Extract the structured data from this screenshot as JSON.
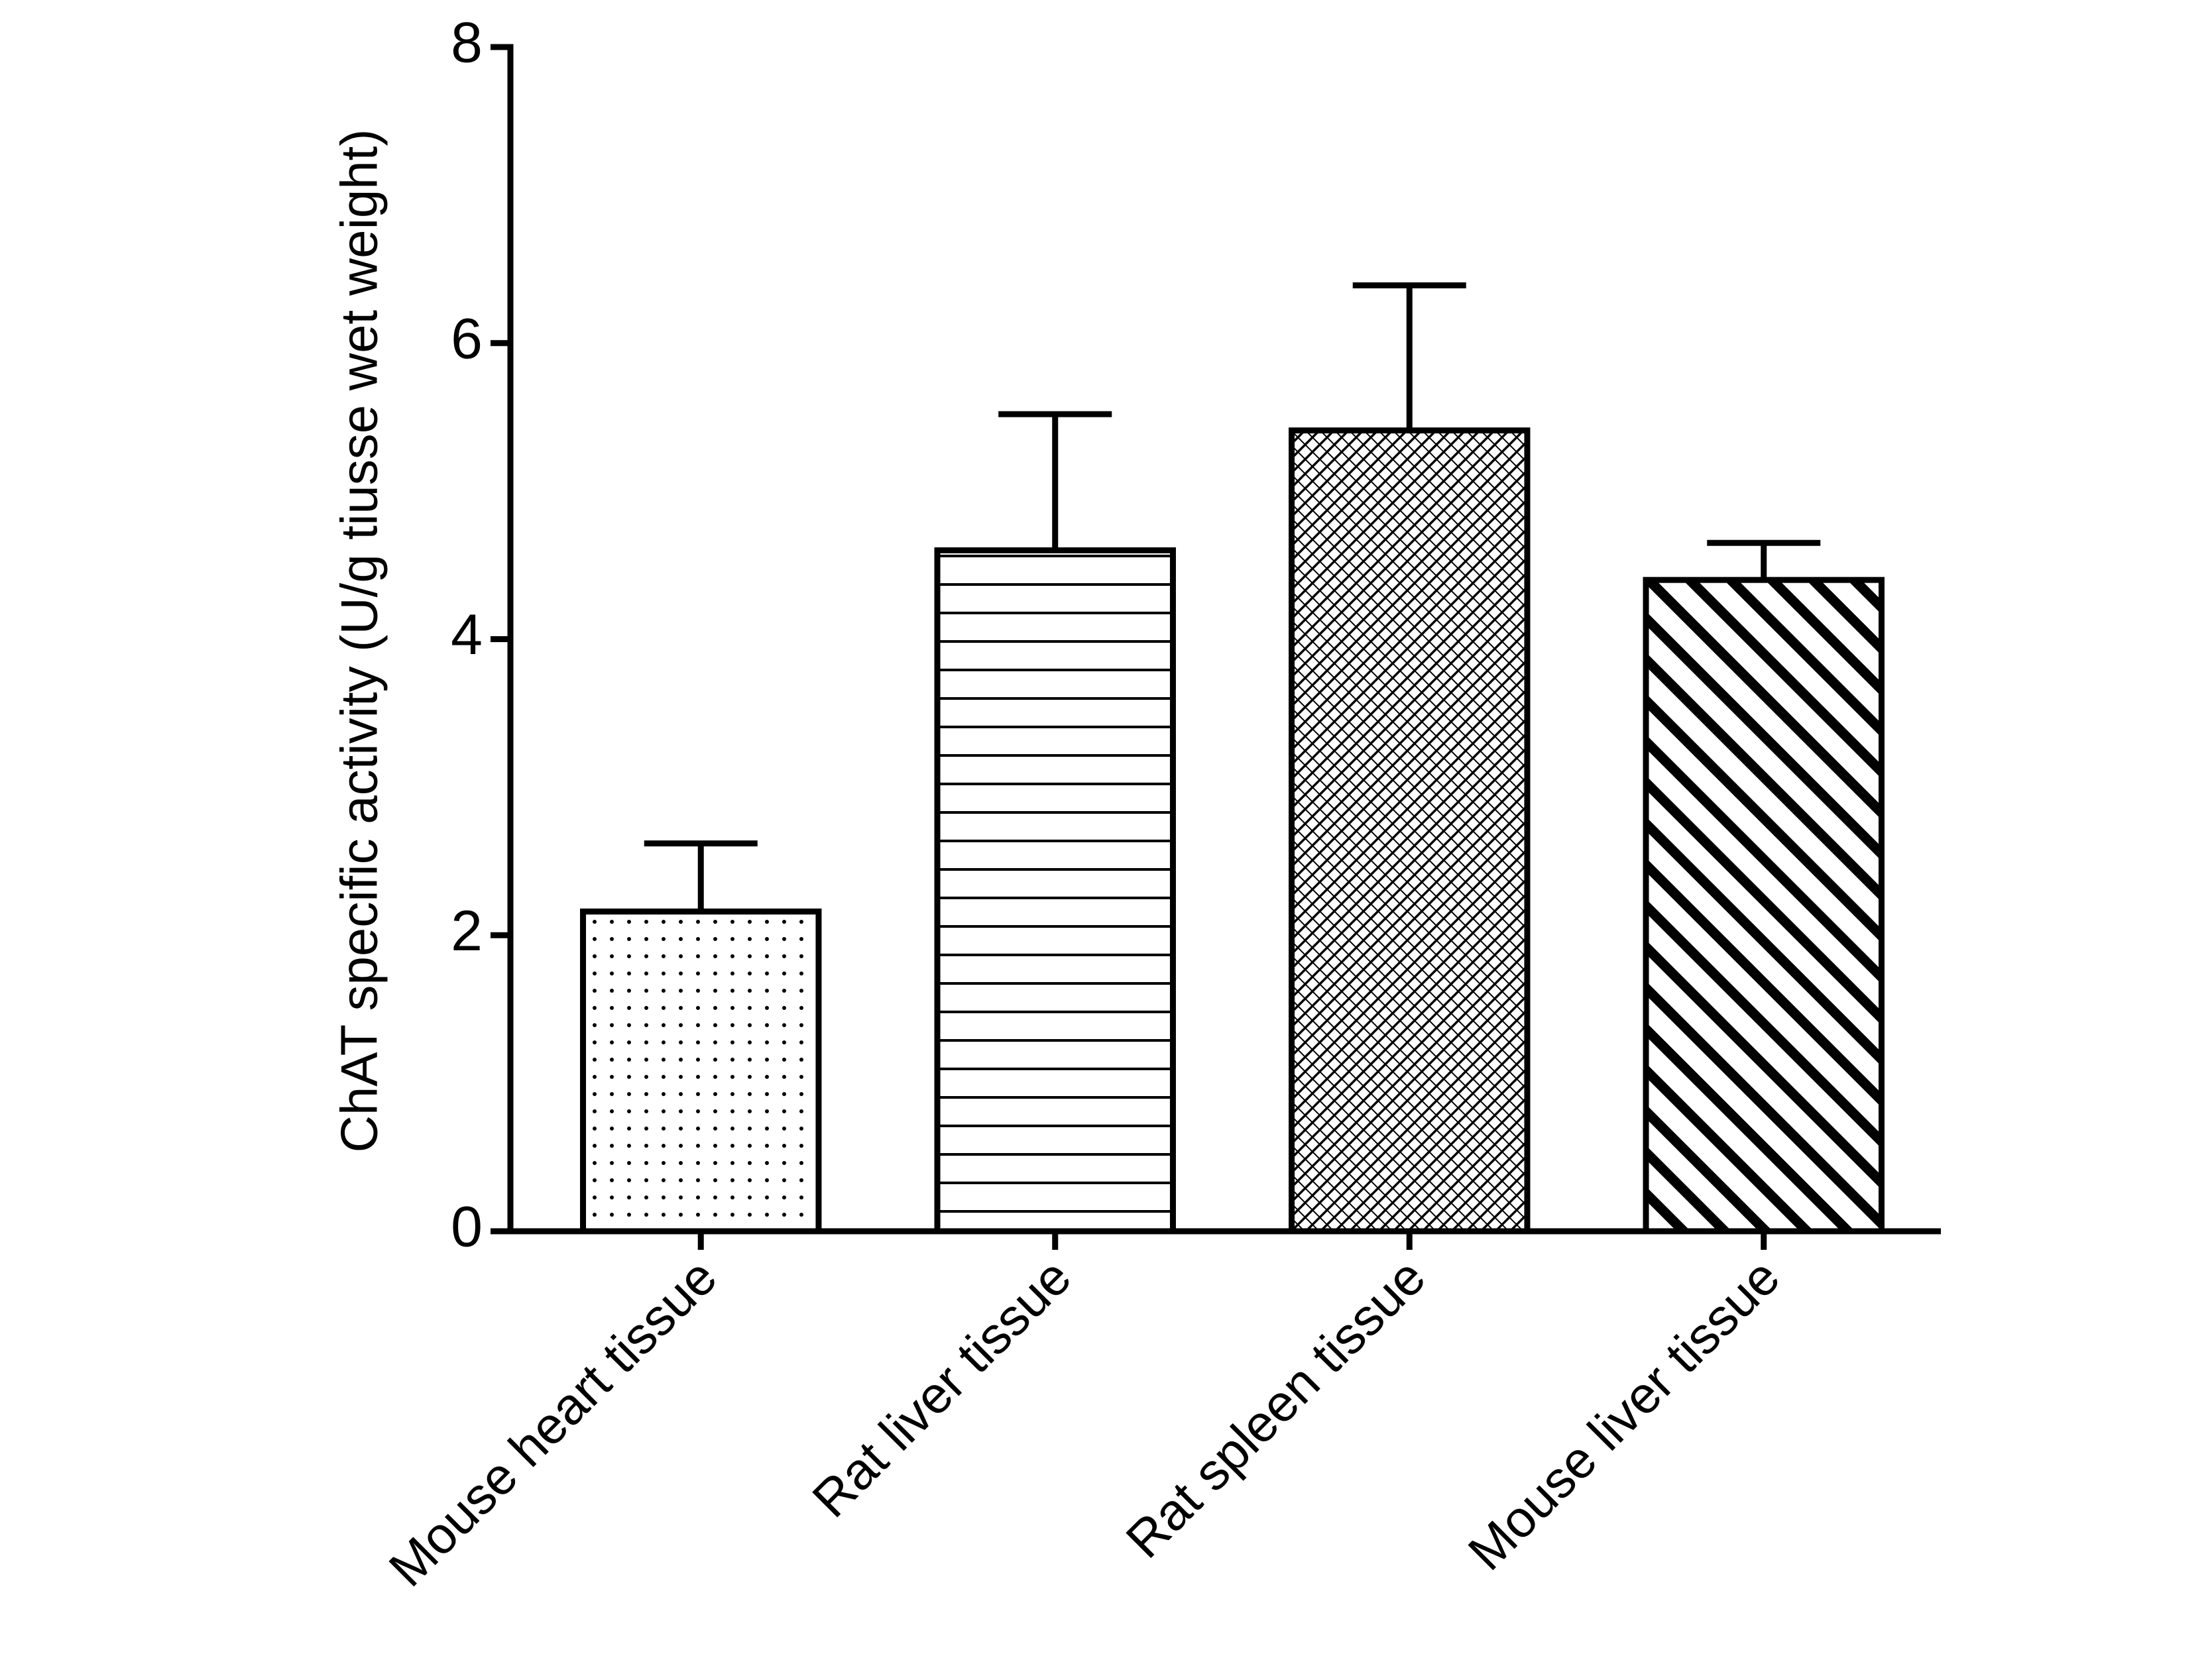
{
  "chart_data": {
    "type": "bar",
    "y_label": "ChAT specific activity (U/g tiusse wet weight)",
    "categories": [
      "Mouse heart tissue",
      "Rat liver tissue",
      "Rat spleen tissue",
      "Mouse liver tissue"
    ],
    "values": [
      2.16,
      4.6,
      5.41,
      4.4
    ],
    "errors": [
      0.46,
      0.92,
      0.98,
      0.25
    ],
    "patterns": [
      "dots",
      "horizontal",
      "crosshatch",
      "diagonal"
    ],
    "color": "#000000",
    "ylim": [
      0,
      8
    ],
    "yticks": [
      0,
      2,
      4,
      6,
      8
    ],
    "grid": false
  }
}
